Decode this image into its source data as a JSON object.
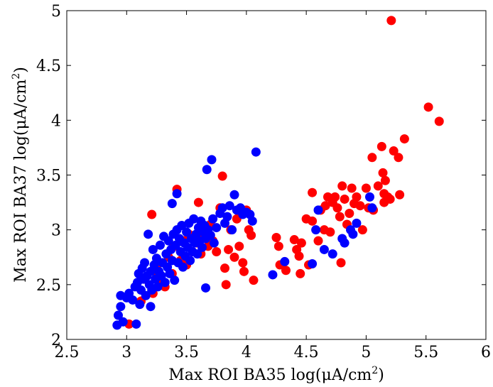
{
  "chart_data": {
    "type": "scatter",
    "title": "",
    "xlabel": "Max ROI BA35 log(μA/cm",
    "xlabel_sup": "2",
    "xlabel_tail": ")",
    "ylabel": "Max ROI BA37 log(μA/cm",
    "ylabel_sup": "2",
    "ylabel_tail": ")",
    "xlim": [
      2.5,
      6
    ],
    "ylim": [
      2,
      5
    ],
    "xticks": [
      2.5,
      3,
      3.5,
      4,
      4.5,
      5,
      5.5,
      6
    ],
    "yticks": [
      2,
      2.5,
      3,
      3.5,
      4,
      4.5,
      5
    ],
    "xtick_labels": [
      "2.5",
      "3",
      "3.5",
      "4",
      "4.5",
      "5",
      "5.5",
      "6"
    ],
    "ytick_labels": [
      "2",
      "2.5",
      "3",
      "3.5",
      "4",
      "4.5",
      "5"
    ],
    "grid": false,
    "legend": "none",
    "series": [
      {
        "color": "#ff0000",
        "points": [
          [
            3.02,
            2.14
          ],
          [
            3.12,
            2.35
          ],
          [
            3.15,
            2.55
          ],
          [
            3.21,
            3.14
          ],
          [
            3.22,
            2.42
          ],
          [
            3.25,
            2.62
          ],
          [
            3.28,
            2.7
          ],
          [
            3.3,
            2.52
          ],
          [
            3.32,
            2.48
          ],
          [
            3.35,
            2.75
          ],
          [
            3.38,
            2.6
          ],
          [
            3.4,
            2.85
          ],
          [
            3.42,
            3.37
          ],
          [
            3.45,
            2.72
          ],
          [
            3.48,
            2.9
          ],
          [
            3.5,
            2.68
          ],
          [
            3.52,
            2.96
          ],
          [
            3.55,
            2.8
          ],
          [
            3.58,
            2.88
          ],
          [
            3.6,
            3.25
          ],
          [
            3.62,
            2.78
          ],
          [
            3.65,
            2.95
          ],
          [
            3.68,
            2.85
          ],
          [
            3.7,
            3.05
          ],
          [
            3.72,
            2.9
          ],
          [
            3.75,
            2.8
          ],
          [
            3.78,
            3.2
          ],
          [
            3.8,
            3.49
          ],
          [
            3.82,
            2.65
          ],
          [
            3.83,
            2.5
          ],
          [
            3.85,
            2.82
          ],
          [
            3.87,
            3.0
          ],
          [
            3.9,
            2.75
          ],
          [
            3.92,
            3.1
          ],
          [
            3.94,
            2.85
          ],
          [
            3.96,
            3.15
          ],
          [
            3.97,
            2.7
          ],
          [
            3.98,
            2.62
          ],
          [
            4.0,
            3.18
          ],
          [
            4.02,
            3.0
          ],
          [
            4.04,
            2.95
          ],
          [
            4.06,
            2.54
          ],
          [
            4.25,
            2.93
          ],
          [
            4.27,
            2.85
          ],
          [
            4.28,
            2.68
          ],
          [
            4.33,
            2.63
          ],
          [
            4.4,
            2.91
          ],
          [
            4.42,
            2.82
          ],
          [
            4.44,
            2.76
          ],
          [
            4.45,
            2.6
          ],
          [
            4.46,
            2.88
          ],
          [
            4.5,
            3.1
          ],
          [
            4.52,
            2.68
          ],
          [
            4.55,
            3.08
          ],
          [
            4.55,
            3.34
          ],
          [
            4.6,
            2.9
          ],
          [
            4.62,
            3.18
          ],
          [
            4.65,
            3.0
          ],
          [
            4.66,
            3.22
          ],
          [
            4.68,
            3.3
          ],
          [
            4.7,
            2.98
          ],
          [
            4.72,
            3.25
          ],
          [
            4.74,
            3.3
          ],
          [
            4.76,
            3.2
          ],
          [
            4.78,
            3.12
          ],
          [
            4.79,
            2.7
          ],
          [
            4.8,
            3.4
          ],
          [
            4.82,
            3.28
          ],
          [
            4.84,
            3.05
          ],
          [
            4.86,
            3.15
          ],
          [
            4.88,
            3.38
          ],
          [
            4.9,
            3.24
          ],
          [
            4.92,
            3.3
          ],
          [
            4.95,
            3.22
          ],
          [
            4.97,
            3.0
          ],
          [
            5.0,
            3.38
          ],
          [
            5.02,
            3.2
          ],
          [
            5.05,
            3.66
          ],
          [
            5.06,
            3.18
          ],
          [
            5.1,
            3.4
          ],
          [
            5.13,
            3.76
          ],
          [
            5.14,
            3.52
          ],
          [
            5.15,
            3.33
          ],
          [
            5.15,
            3.25
          ],
          [
            5.16,
            3.45
          ],
          [
            5.18,
            3.3
          ],
          [
            5.2,
            3.28
          ],
          [
            5.21,
            4.91
          ],
          [
            5.23,
            3.72
          ],
          [
            5.27,
            3.66
          ],
          [
            5.28,
            3.32
          ],
          [
            5.32,
            3.83
          ],
          [
            5.52,
            4.12
          ],
          [
            5.61,
            3.99
          ]
        ]
      },
      {
        "color": "#0000ff",
        "points": [
          [
            2.92,
            2.13
          ],
          [
            2.93,
            2.22
          ],
          [
            2.95,
            2.3
          ],
          [
            2.95,
            2.4
          ],
          [
            2.97,
            2.16
          ],
          [
            3.0,
            2.38
          ],
          [
            3.02,
            2.42
          ],
          [
            3.05,
            2.36
          ],
          [
            3.07,
            2.48
          ],
          [
            3.08,
            2.14
          ],
          [
            3.09,
            2.52
          ],
          [
            3.1,
            2.6
          ],
          [
            3.11,
            2.32
          ],
          [
            3.12,
            2.45
          ],
          [
            3.13,
            2.65
          ],
          [
            3.14,
            2.55
          ],
          [
            3.15,
            2.7
          ],
          [
            3.16,
            2.4
          ],
          [
            3.17,
            2.58
          ],
          [
            3.18,
            2.96
          ],
          [
            3.19,
            2.5
          ],
          [
            3.2,
            2.62
          ],
          [
            3.2,
            2.3
          ],
          [
            3.21,
            2.45
          ],
          [
            3.22,
            2.82
          ],
          [
            3.23,
            2.68
          ],
          [
            3.24,
            2.55
          ],
          [
            3.25,
            2.74
          ],
          [
            3.26,
            2.48
          ],
          [
            3.27,
            2.62
          ],
          [
            3.28,
            2.86
          ],
          [
            3.29,
            2.58
          ],
          [
            3.3,
            2.7
          ],
          [
            3.31,
            2.94
          ],
          [
            3.32,
            2.52
          ],
          [
            3.33,
            2.78
          ],
          [
            3.34,
            2.66
          ],
          [
            3.35,
            2.9
          ],
          [
            3.36,
            2.6
          ],
          [
            3.37,
            2.82
          ],
          [
            3.38,
            2.72
          ],
          [
            3.38,
            3.24
          ],
          [
            3.39,
            2.96
          ],
          [
            3.4,
            2.54
          ],
          [
            3.41,
            2.86
          ],
          [
            3.42,
            3.0
          ],
          [
            3.42,
            3.33
          ],
          [
            3.43,
            2.7
          ],
          [
            3.44,
            2.92
          ],
          [
            3.45,
            2.8
          ],
          [
            3.46,
            3.04
          ],
          [
            3.47,
            2.66
          ],
          [
            3.48,
            2.88
          ],
          [
            3.49,
            2.76
          ],
          [
            3.5,
            2.98
          ],
          [
            3.51,
            2.84
          ],
          [
            3.52,
            3.06
          ],
          [
            3.53,
            2.72
          ],
          [
            3.54,
            2.92
          ],
          [
            3.55,
            2.8
          ],
          [
            3.56,
            3.1
          ],
          [
            3.57,
            2.88
          ],
          [
            3.58,
            2.96
          ],
          [
            3.59,
            2.78
          ],
          [
            3.6,
            3.02
          ],
          [
            3.61,
            2.9
          ],
          [
            3.62,
            3.08
          ],
          [
            3.63,
            2.84
          ],
          [
            3.64,
            2.98
          ],
          [
            3.65,
            3.04
          ],
          [
            3.66,
            2.92
          ],
          [
            3.66,
            2.47
          ],
          [
            3.67,
            3.55
          ],
          [
            3.68,
            3.0
          ],
          [
            3.7,
            2.95
          ],
          [
            3.71,
            3.64
          ],
          [
            3.72,
            3.1
          ],
          [
            3.73,
            2.88
          ],
          [
            3.75,
            3.02
          ],
          [
            3.78,
            3.15
          ],
          [
            3.8,
            3.2
          ],
          [
            3.82,
            3.06
          ],
          [
            3.84,
            3.12
          ],
          [
            3.86,
            3.22
          ],
          [
            3.88,
            3.0
          ],
          [
            3.9,
            3.32
          ],
          [
            3.92,
            3.18
          ],
          [
            3.95,
            3.2
          ],
          [
            3.97,
            3.14
          ],
          [
            4.0,
            3.16
          ],
          [
            4.03,
            3.14
          ],
          [
            4.05,
            3.08
          ],
          [
            4.08,
            3.71
          ],
          [
            4.22,
            2.59
          ],
          [
            4.32,
            2.71
          ],
          [
            4.55,
            2.69
          ],
          [
            4.58,
            3.0
          ],
          [
            4.6,
            3.18
          ],
          [
            4.65,
            2.82
          ],
          [
            4.72,
            2.78
          ],
          [
            4.8,
            2.92
          ],
          [
            4.82,
            2.88
          ],
          [
            4.87,
            3.0
          ],
          [
            4.89,
            2.96
          ],
          [
            4.92,
            3.06
          ],
          [
            5.03,
            3.3
          ],
          [
            5.05,
            3.2
          ]
        ]
      }
    ]
  }
}
